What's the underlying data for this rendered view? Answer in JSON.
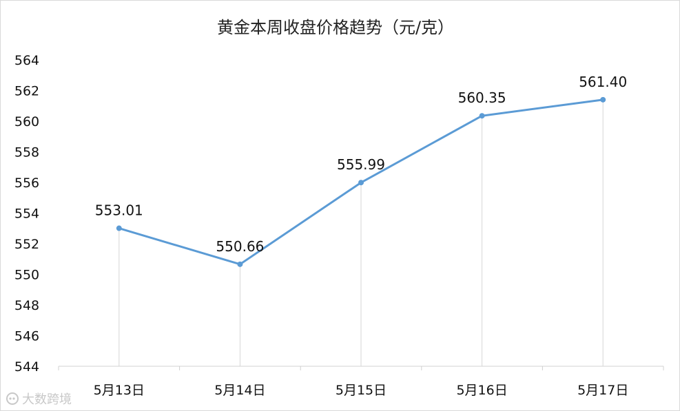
{
  "chart_data": {
    "type": "line",
    "title": "黄金本周收盘价格趋势（元/克）",
    "categories": [
      "5月13日",
      "5月14日",
      "5月15日",
      "5月16日",
      "5月17日"
    ],
    "series": [
      {
        "values": [
          553.01,
          550.66,
          555.99,
          560.35,
          561.4
        ],
        "labels": [
          "553.01",
          "550.66",
          "555.99",
          "560.35",
          "561.40"
        ],
        "color": "#5b9bd5"
      }
    ],
    "ylim": [
      544,
      564
    ],
    "yticks": [
      "544",
      "546",
      "548",
      "550",
      "552",
      "554",
      "556",
      "558",
      "560",
      "562",
      "564"
    ],
    "grid": false,
    "drop_lines": true,
    "legend": "none"
  },
  "watermark": {
    "text": "大数跨境",
    "logo": "bubble-logo-icon"
  }
}
